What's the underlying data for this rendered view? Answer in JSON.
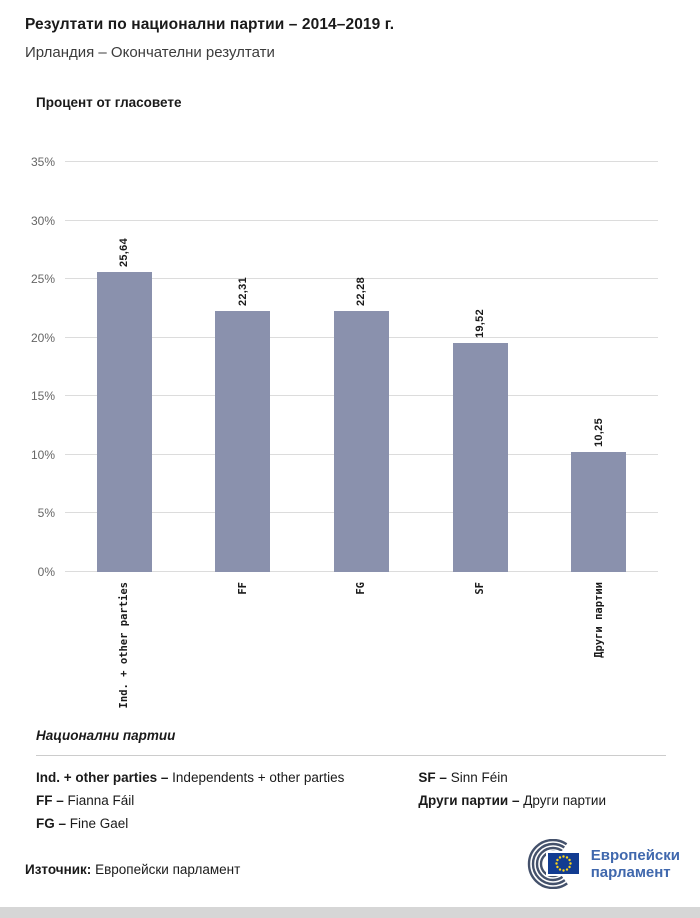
{
  "header": {
    "title": "Резултати по национални партии – 2014–2019 г.",
    "subtitle": "Ирландия – Окончателни резултати"
  },
  "chart_data": {
    "type": "bar",
    "ylabel": "Процент от гласовете",
    "categories": [
      "Ind. + other parties",
      "FF",
      "FG",
      "SF",
      "Други партии"
    ],
    "values": [
      25.64,
      22.31,
      22.28,
      19.52,
      10.25
    ],
    "value_labels": [
      "25,64",
      "22,31",
      "22,28",
      "19,52",
      "10,25"
    ],
    "ylim": [
      0,
      35
    ],
    "ytick_labels": [
      "0%",
      "5%",
      "10%",
      "15%",
      "20%",
      "25%",
      "30%",
      "35%"
    ],
    "bar_color": "#8a91ad",
    "grid": true,
    "legend_position": "below"
  },
  "legend": {
    "heading": "Национални партии",
    "items": [
      {
        "abbr": "Ind. + other parties –",
        "name": "Independents + other parties"
      },
      {
        "abbr": "FF –",
        "name": "Fianna Fáil"
      },
      {
        "abbr": "FG –",
        "name": "Fine Gael"
      },
      {
        "abbr": "SF –",
        "name": "Sinn Féin"
      },
      {
        "abbr": "Други партии –",
        "name": "Други партии"
      }
    ]
  },
  "footer": {
    "source_label": "Източник:",
    "source_value": "Европейски парламент",
    "logo": {
      "line1": "Европейски",
      "line2": "парламент"
    }
  }
}
